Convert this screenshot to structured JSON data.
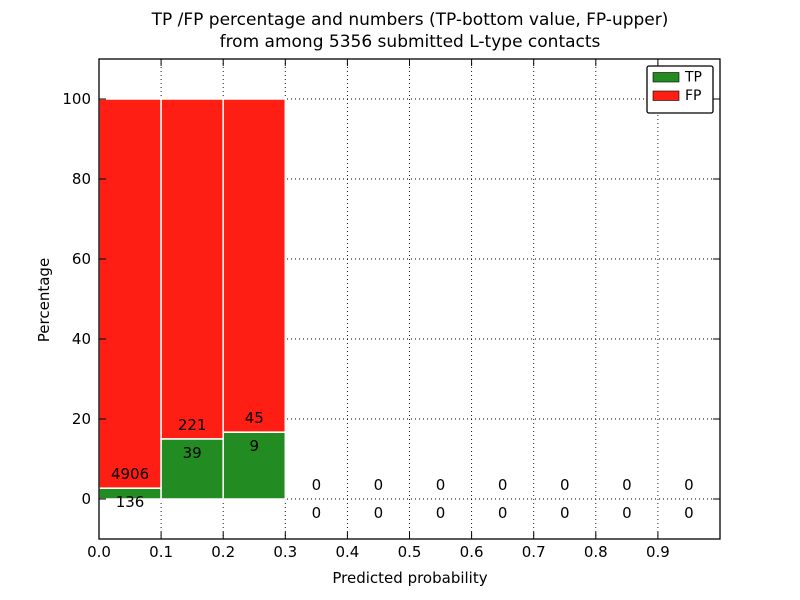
{
  "figure": {
    "title_line1": "TP /FP percentage and numbers (TP-bottom value, FP-upper)",
    "title_line2": "from among 5356 submitted L-type contacts"
  },
  "chart_data": {
    "type": "bar",
    "stacked": true,
    "title": "TP /FP percentage and numbers (TP-bottom value, FP-upper)\nfrom among 5356 submitted L-type contacts",
    "total_contacts": 5356,
    "xlabel": "Predicted probability",
    "ylabel": "Percentage",
    "xlim": [
      0,
      1
    ],
    "ylim": [
      -10,
      110
    ],
    "xtick_values": [
      0.0,
      0.1,
      0.2,
      0.3,
      0.4,
      0.5,
      0.6,
      0.7,
      0.8,
      0.9
    ],
    "xtick_labels": [
      "0.0",
      "0.1",
      "0.2",
      "0.3",
      "0.4",
      "0.5",
      "0.6",
      "0.7",
      "0.8",
      "0.9"
    ],
    "ytick_values": [
      0,
      20,
      40,
      60,
      80,
      100
    ],
    "ytick_labels": [
      "0",
      "20",
      "40",
      "60",
      "80",
      "100"
    ],
    "grid": "dotted",
    "colors": {
      "tp": "#228b22",
      "fp": "#ff1e14",
      "bar_edge": "#ffffff",
      "axis": "#000000"
    },
    "legend": {
      "position": "upper-right",
      "entries": [
        {
          "label": "TP",
          "color": "#228b22"
        },
        {
          "label": "FP",
          "color": "#ff1e14"
        }
      ]
    },
    "bins": [
      {
        "range": [
          0.0,
          0.1
        ],
        "tp_count": 136,
        "fp_count": 4906,
        "tp_pct": 2.7,
        "fp_pct": 97.3
      },
      {
        "range": [
          0.1,
          0.2
        ],
        "tp_count": 39,
        "fp_count": 221,
        "tp_pct": 15.0,
        "fp_pct": 85.0
      },
      {
        "range": [
          0.2,
          0.3
        ],
        "tp_count": 9,
        "fp_count": 45,
        "tp_pct": 16.7,
        "fp_pct": 83.3
      },
      {
        "range": [
          0.3,
          0.4
        ],
        "tp_count": 0,
        "fp_count": 0,
        "tp_pct": 0,
        "fp_pct": 0
      },
      {
        "range": [
          0.4,
          0.5
        ],
        "tp_count": 0,
        "fp_count": 0,
        "tp_pct": 0,
        "fp_pct": 0
      },
      {
        "range": [
          0.5,
          0.6
        ],
        "tp_count": 0,
        "fp_count": 0,
        "tp_pct": 0,
        "fp_pct": 0
      },
      {
        "range": [
          0.6,
          0.7
        ],
        "tp_count": 0,
        "fp_count": 0,
        "tp_pct": 0,
        "fp_pct": 0
      },
      {
        "range": [
          0.7,
          0.8
        ],
        "tp_count": 0,
        "fp_count": 0,
        "tp_pct": 0,
        "fp_pct": 0
      },
      {
        "range": [
          0.8,
          0.9
        ],
        "tp_count": 0,
        "fp_count": 0,
        "tp_pct": 0,
        "fp_pct": 0
      },
      {
        "range": [
          0.9,
          1.0
        ],
        "tp_count": 0,
        "fp_count": 0,
        "tp_pct": 0,
        "fp_pct": 0
      }
    ]
  }
}
